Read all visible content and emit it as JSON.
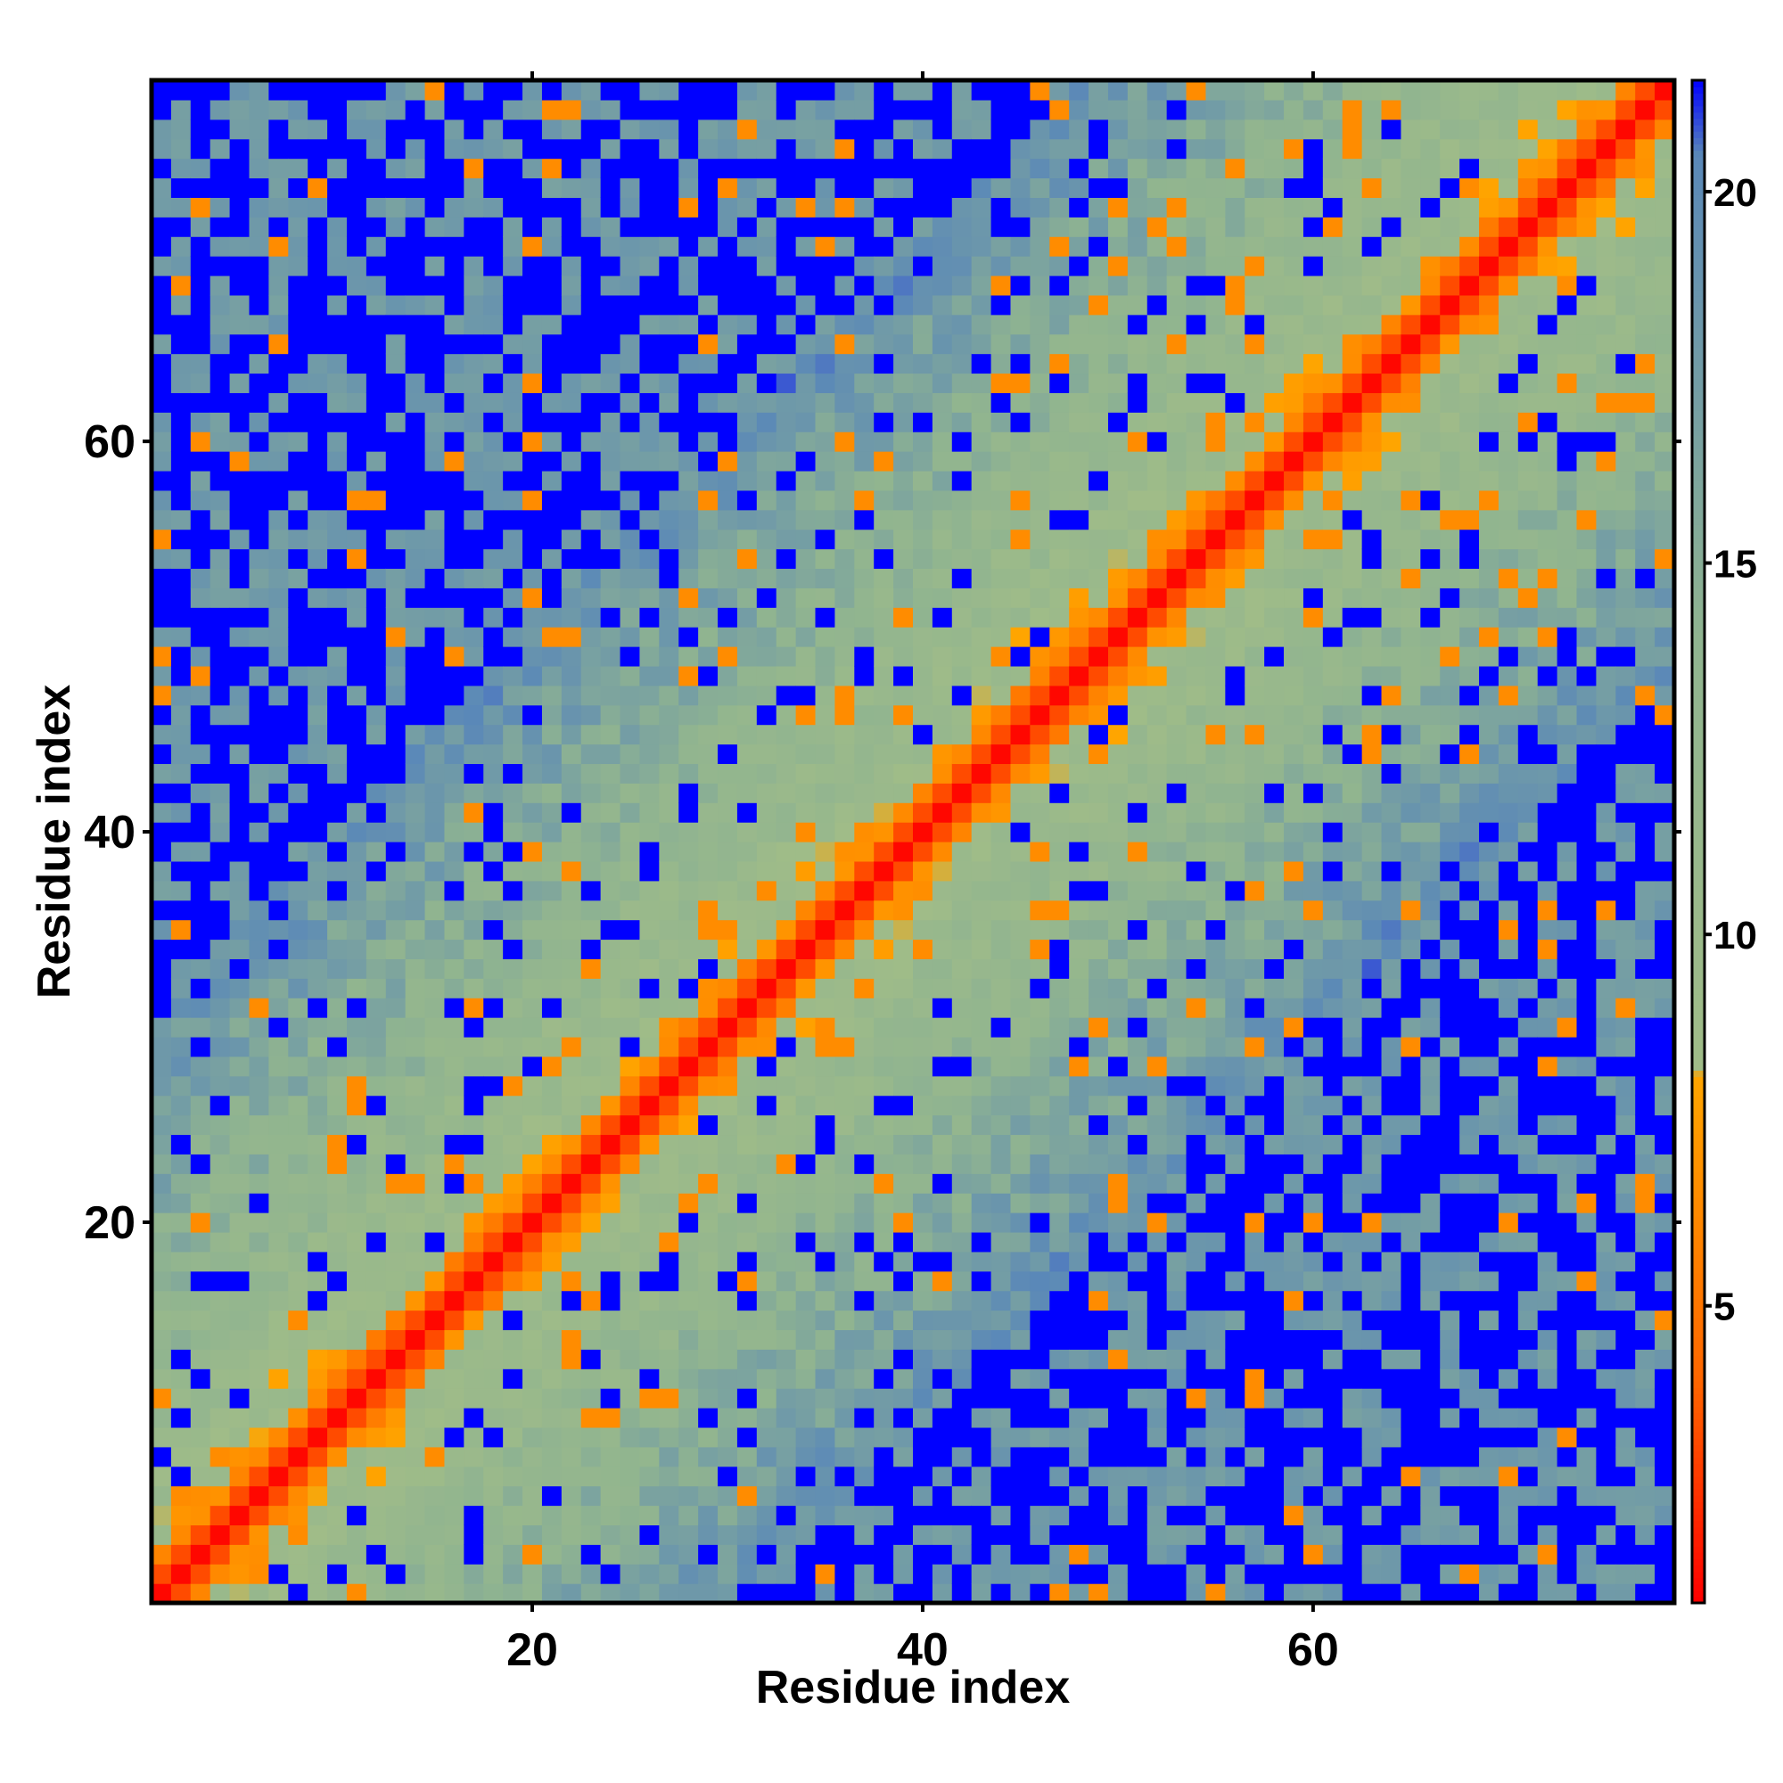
{
  "chart_data": {
    "type": "heatmap",
    "title": "",
    "xlabel": "Residue index",
    "ylabel": "Residue index",
    "x_range": [
      1,
      78
    ],
    "y_range": [
      1,
      78
    ],
    "x_ticks": [
      20,
      40,
      60
    ],
    "y_ticks": [
      20,
      40,
      60
    ],
    "colorbar": {
      "ticks": [
        5,
        10,
        15,
        20
      ],
      "range": [
        1,
        21.5
      ],
      "stops": [
        {
          "value": 1,
          "color": "#ff0000"
        },
        {
          "value": 4,
          "color": "#ff6600"
        },
        {
          "value": 8.1,
          "color": "#ffa500"
        },
        {
          "value": 8.2,
          "color": "#a0bc88"
        },
        {
          "value": 14,
          "color": "#90b490"
        },
        {
          "value": 20.5,
          "color": "#5a88b8"
        },
        {
          "value": 21.5,
          "color": "#0000ff"
        }
      ]
    },
    "cell_value_rule": "distance matrix: value grows with |i - j|, saturating at 21.5 (blue) for distant residue pairs",
    "grid": false
  }
}
